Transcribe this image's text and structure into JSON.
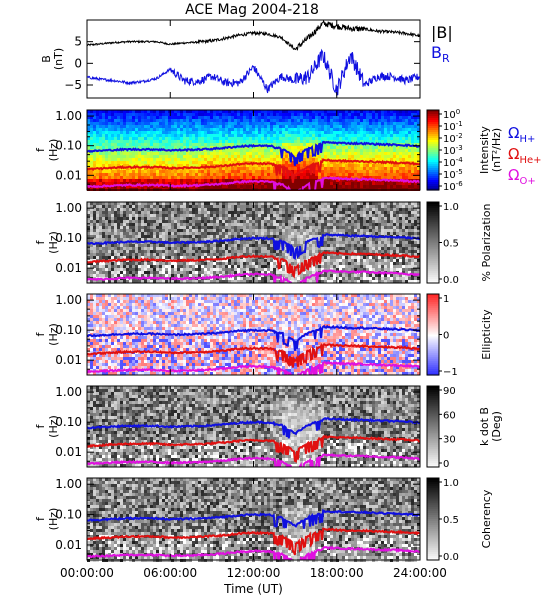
{
  "chart_data": [
    {
      "type": "line",
      "title": "ACE Mag 2004-218",
      "ylabel_lines": [
        "B",
        "(nT)"
      ],
      "yticks": [
        -5,
        0,
        5
      ],
      "ylim": [
        -8,
        10
      ],
      "xlim": [
        0,
        24
      ],
      "legend": [
        {
          "name": "|B|",
          "color": "#000000"
        },
        {
          "name": "B",
          "sub": "R",
          "color": "#1010e0"
        }
      ],
      "series": [
        {
          "name": "|B|",
          "color": "#000000",
          "x": [
            0,
            1,
            2,
            3,
            4,
            5,
            6,
            7,
            8,
            9,
            10,
            11,
            12,
            13,
            14,
            15,
            16,
            17,
            18,
            19,
            20,
            21,
            22,
            23,
            24
          ],
          "y": [
            4.2,
            4.5,
            4.8,
            5.0,
            5.0,
            5.0,
            4.4,
            4.7,
            4.9,
            5.2,
            5.8,
            6.5,
            7.0,
            6.8,
            6.0,
            3.2,
            6.0,
            9.2,
            8.6,
            8.0,
            7.9,
            7.4,
            7.2,
            6.9,
            6.3
          ]
        },
        {
          "name": "B_R",
          "color": "#1010e0",
          "x": [
            0,
            1,
            2,
            3,
            4,
            5,
            6,
            7,
            8,
            9,
            10,
            11,
            12,
            13,
            14,
            15,
            16,
            17,
            18,
            19,
            20,
            21,
            22,
            23,
            24
          ],
          "y": [
            -3.2,
            -3.7,
            -4.0,
            -4.5,
            -4.2,
            -3.5,
            -1.4,
            -4.0,
            -4.2,
            -3.0,
            -4.5,
            -4.5,
            -0.8,
            -6.0,
            -3.0,
            -4.0,
            -3.0,
            2.0,
            -6.2,
            2.0,
            -5.0,
            -3.0,
            -3.0,
            -4.0,
            -3.0
          ]
        }
      ]
    },
    {
      "type": "heatmap",
      "name": "intensity",
      "ylabel_lines": [
        "f",
        "(Hz)"
      ],
      "yticks": [
        "1.00",
        "0.10",
        "0.01"
      ],
      "colorbar": {
        "ticks": [
          "10",
          "10",
          "10",
          "10",
          "10",
          "10",
          "10"
        ],
        "exponents": [
          "0",
          "-1",
          "-2",
          "-3",
          "-4",
          "-5",
          "-6"
        ],
        "label": "Intensity",
        "label2": "(nT²/Hz)"
      },
      "overlay_legend": [
        {
          "name": "Ω",
          "sub": "H+",
          "color": "#1010e0"
        },
        {
          "name": "Ω",
          "sub": "He+",
          "color": "#e01010"
        },
        {
          "name": "Ω",
          "sub": "O+",
          "color": "#e010e0"
        }
      ]
    },
    {
      "type": "heatmap",
      "name": "polarization",
      "ylabel_lines": [
        "f",
        "(Hz)"
      ],
      "yticks": [
        "1.00",
        "0.10",
        "0.01"
      ],
      "colorbar": {
        "ticks": [
          "1.0",
          "0.5",
          "0.0"
        ],
        "label": "% Polarization"
      }
    },
    {
      "type": "heatmap",
      "name": "ellipticity",
      "ylabel_lines": [
        "f",
        "(Hz)"
      ],
      "yticks": [
        "1.00",
        "0.10",
        "0.01"
      ],
      "colorbar": {
        "ticks": [
          "1",
          "0",
          "−1"
        ],
        "label": "Ellipticity"
      }
    },
    {
      "type": "heatmap",
      "name": "kdotb",
      "ylabel_lines": [
        "f",
        "(Hz)"
      ],
      "yticks": [
        "1.00",
        "0.10",
        "0.01"
      ],
      "colorbar": {
        "ticks": [
          "90",
          "60",
          "30",
          "0"
        ],
        "label": "k dot B",
        "label2": "(Deg)"
      }
    },
    {
      "type": "heatmap",
      "name": "coherency",
      "ylabel_lines": [
        "f",
        "(Hz)"
      ],
      "yticks": [
        "1.00",
        "0.10",
        "0.01"
      ],
      "colorbar": {
        "ticks": [
          "1.0",
          "0.5",
          "0.0"
        ],
        "label": "Coherency"
      }
    }
  ],
  "gyrofrequency_lines": {
    "x": [
      0,
      1,
      2,
      3,
      4,
      5,
      6,
      7,
      8,
      9,
      10,
      11,
      12,
      13,
      14,
      15,
      16,
      17,
      18,
      19,
      20,
      21,
      22,
      23,
      24
    ],
    "H+": [
      0.065,
      0.068,
      0.072,
      0.075,
      0.075,
      0.075,
      0.07,
      0.072,
      0.074,
      0.078,
      0.085,
      0.095,
      0.1,
      0.098,
      0.09,
      0.045,
      0.09,
      0.13,
      0.125,
      0.12,
      0.118,
      0.112,
      0.108,
      0.104,
      0.095
    ],
    "He+": [
      0.016,
      0.017,
      0.018,
      0.019,
      0.019,
      0.019,
      0.0175,
      0.018,
      0.0185,
      0.0195,
      0.021,
      0.024,
      0.025,
      0.0245,
      0.0225,
      0.011,
      0.0225,
      0.033,
      0.031,
      0.03,
      0.0295,
      0.028,
      0.027,
      0.026,
      0.024
    ],
    "O+": [
      0.0042,
      0.0043,
      0.0045,
      0.0047,
      0.0047,
      0.0047,
      0.0044,
      0.0045,
      0.0046,
      0.0049,
      0.0053,
      0.006,
      0.0063,
      0.0061,
      0.0056,
      0.0028,
      0.0056,
      0.0082,
      0.0078,
      0.0075,
      0.0074,
      0.007,
      0.0068,
      0.0065,
      0.006
    ]
  },
  "xaxis": {
    "ticks": [
      "00:00:00",
      "06:00:00",
      "12:00:00",
      "18:00:00",
      "24:00:00"
    ],
    "label": "Time (UT)"
  }
}
